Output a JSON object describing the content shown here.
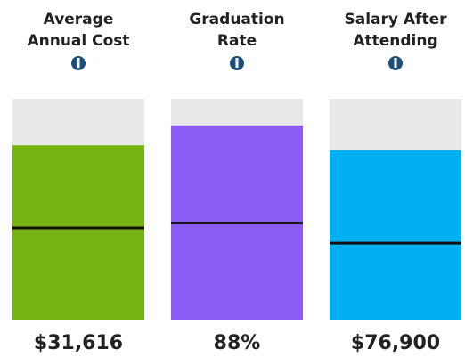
{
  "chart_data": [
    {
      "type": "bar",
      "title": [
        "Average",
        "Annual Cost"
      ],
      "values": [
        31616
      ],
      "value_labels": [
        "$31,616"
      ],
      "reference": [
        16700
      ],
      "ylim": [
        0,
        40000
      ],
      "color": "#76b414"
    },
    {
      "type": "bar",
      "title": [
        "Graduation",
        "Rate"
      ],
      "values": [
        88
      ],
      "value_labels": [
        "88%"
      ],
      "reference": [
        44
      ],
      "ylim": [
        0,
        100
      ],
      "color": "#8c5cf5"
    },
    {
      "type": "bar",
      "title": [
        "Salary After",
        "Attending"
      ],
      "values": [
        76900
      ],
      "value_labels": [
        "$76,900"
      ],
      "reference": [
        34900
      ],
      "ylim": [
        0,
        100000
      ],
      "color": "#00b0f0"
    }
  ]
}
